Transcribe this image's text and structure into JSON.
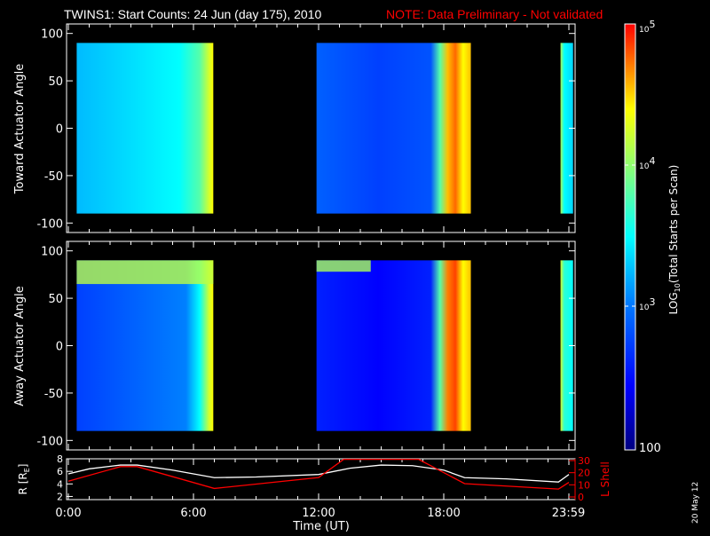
{
  "title": "TWINS1: Start Counts: 24 Jun (day 175), 2010",
  "note": "NOTE: Data Preliminary - Not validated",
  "side_label": "20 May 12",
  "colors": {
    "background": "#000000",
    "axes": "#ffffff",
    "note": "#ff0000",
    "r_line": "#ffffff",
    "lshell_line": "#ff0000"
  },
  "chart_data": [
    {
      "type": "heatmap",
      "ylabel": "Toward Actuator Angle",
      "ylim": [
        -110,
        110
      ],
      "yticks": [
        "100",
        "50",
        "0",
        "-50",
        "-100"
      ],
      "data_range_deg": [
        -90,
        90
      ],
      "blocks": [
        {
          "start_h": 0.4,
          "end_h": 6.95,
          "profile": [
            [
              0,
              0.42
            ],
            [
              0.3,
              0.45
            ],
            [
              0.75,
              0.5
            ],
            [
              0.9,
              0.6
            ],
            [
              0.97,
              0.75
            ],
            [
              1,
              0.8
            ]
          ]
        },
        {
          "start_h": 11.9,
          "end_h": 19.3,
          "profile": [
            [
              0,
              0.3
            ],
            [
              0.4,
              0.25
            ],
            [
              0.74,
              0.28
            ],
            [
              0.8,
              0.6
            ],
            [
              0.85,
              0.85
            ],
            [
              0.9,
              0.92
            ],
            [
              0.95,
              0.8
            ],
            [
              1,
              0.85
            ]
          ]
        },
        {
          "start_h": 23.6,
          "end_h": 24.2,
          "profile": [
            [
              0,
              0.7
            ],
            [
              0.3,
              0.5
            ],
            [
              1,
              0.45
            ]
          ]
        }
      ]
    },
    {
      "type": "heatmap",
      "ylabel": "Away Actuator Angle",
      "ylim": [
        -110,
        110
      ],
      "yticks": [
        "100",
        "50",
        "0",
        "-50",
        "-100"
      ],
      "data_range_deg": [
        -90,
        90
      ],
      "blocks": [
        {
          "start_h": 0.4,
          "end_h": 6.95,
          "profile": [
            [
              0,
              0.25
            ],
            [
              0.4,
              0.3
            ],
            [
              0.8,
              0.35
            ],
            [
              0.9,
              0.5
            ],
            [
              0.97,
              0.75
            ],
            [
              1,
              0.8
            ]
          ]
        },
        {
          "start_h": 11.9,
          "end_h": 19.3,
          "profile": [
            [
              0,
              0.2
            ],
            [
              0.4,
              0.15
            ],
            [
              0.74,
              0.2
            ],
            [
              0.8,
              0.6
            ],
            [
              0.85,
              0.9
            ],
            [
              0.9,
              0.95
            ],
            [
              0.95,
              0.8
            ],
            [
              1,
              0.85
            ]
          ]
        },
        {
          "start_h": 23.6,
          "end_h": 24.2,
          "profile": [
            [
              0,
              0.75
            ],
            [
              0.3,
              0.55
            ],
            [
              1,
              0.5
            ]
          ]
        }
      ]
    },
    {
      "type": "line",
      "xlabel": "Time (UT)",
      "xticks": [
        "0:00",
        "6:00",
        "12:00",
        "18:00",
        "23:59"
      ],
      "ylabel": "R [RE]",
      "ylabel_main": "R [R",
      "ylabel_sub": "E",
      "ylabel_end": "]",
      "ylim": [
        1.5,
        8
      ],
      "yticks": [
        "2",
        "4",
        "6",
        "8"
      ],
      "y2label": "L Shell",
      "y2lim": [
        0,
        30
      ],
      "y2ticks": [
        "0",
        "10",
        "20",
        "30"
      ],
      "series": [
        {
          "key": "R",
          "x": [
            0,
            1,
            2.5,
            3.3,
            5,
            7,
            9,
            12,
            13.5,
            15,
            16.5,
            18,
            19,
            21,
            23.5,
            24
          ],
          "y": [
            5.6,
            6.4,
            7.0,
            7.0,
            6.2,
            5.0,
            5.1,
            5.5,
            6.5,
            7.0,
            6.9,
            6.2,
            5.0,
            4.8,
            4.3,
            5.5
          ]
        },
        {
          "key": "L",
          "x": [
            0,
            2.5,
            3.3,
            7,
            12,
            13.2,
            16.8,
            19,
            23.5,
            24
          ],
          "y": [
            13,
            25,
            25,
            7,
            16,
            31,
            31,
            11,
            6.5,
            12
          ]
        }
      ]
    }
  ],
  "colorbar": {
    "label": "LOG10(Total Starts per Scan)",
    "label_main": "LOG",
    "label_sub": "10",
    "label_rest": "(Total Starts per Scan)",
    "range": [
      100,
      100000
    ],
    "ticks": [
      {
        "base": "10",
        "exp": "5"
      },
      {
        "base": "10",
        "exp": "4"
      },
      {
        "base": "10",
        "exp": "3"
      },
      {
        "base": "100",
        "exp": ""
      }
    ]
  }
}
